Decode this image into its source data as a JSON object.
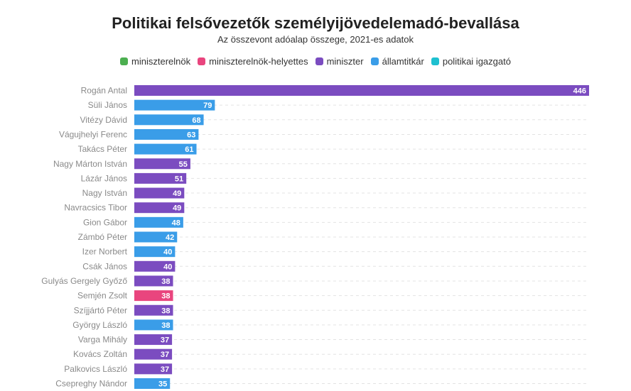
{
  "title": "Politikai felsővezetők személyijövedelemadó-bevallása",
  "subtitle": "Az összevont adóalap összege, 2021-es adatok",
  "colors": {
    "miniszterelnök": "#4caf50",
    "miniszterelnök-helyettes": "#e9457e",
    "miniszter": "#7b4cc0",
    "államtitkár": "#3a9de8",
    "politikai igazgató": "#1ec0d0"
  },
  "legend": [
    {
      "label": "miniszterelnök",
      "color": "#4caf50"
    },
    {
      "label": "miniszterelnök-helyettes",
      "color": "#e9457e"
    },
    {
      "label": "miniszter",
      "color": "#7b4cc0"
    },
    {
      "label": "államtitkár",
      "color": "#3a9de8"
    },
    {
      "label": "politikai igazgató",
      "color": "#1ec0d0"
    }
  ],
  "chart_data": {
    "type": "bar",
    "orientation": "horizontal",
    "title": "Politikai felsővezetők személyijövedelemadó-bevallása",
    "subtitle": "Az összevont adóalap összege, 2021-es adatok",
    "xlim": [
      0,
      446
    ],
    "grid": true,
    "legend_placement": "top-center",
    "bars": [
      {
        "name": "Rogán Antal",
        "value": 446,
        "category": "miniszter"
      },
      {
        "name": "Süli János",
        "value": 79,
        "category": "államtitkár"
      },
      {
        "name": "Vitézy Dávid",
        "value": 68,
        "category": "államtitkár"
      },
      {
        "name": "Vágujhelyi Ferenc",
        "value": 63,
        "category": "államtitkár"
      },
      {
        "name": "Takács Péter",
        "value": 61,
        "category": "államtitkár"
      },
      {
        "name": "Nagy Márton István",
        "value": 55,
        "category": "miniszter"
      },
      {
        "name": "Lázár János",
        "value": 51,
        "category": "miniszter"
      },
      {
        "name": "Nagy István",
        "value": 49,
        "category": "miniszter"
      },
      {
        "name": "Navracsics Tibor",
        "value": 49,
        "category": "miniszter"
      },
      {
        "name": "Gion Gábor",
        "value": 48,
        "category": "államtitkár"
      },
      {
        "name": "Zámbó Péter",
        "value": 42,
        "category": "államtitkár"
      },
      {
        "name": "Izer Norbert",
        "value": 40,
        "category": "államtitkár"
      },
      {
        "name": "Csák János",
        "value": 40,
        "category": "miniszter"
      },
      {
        "name": "Gulyás Gergely Győző",
        "value": 38,
        "category": "miniszter"
      },
      {
        "name": "Semjén Zsolt",
        "value": 38,
        "category": "miniszterelnök-helyettes"
      },
      {
        "name": "Szíjjártó Péter",
        "value": 38,
        "category": "miniszter"
      },
      {
        "name": "György László",
        "value": 38,
        "category": "államtitkár"
      },
      {
        "name": "Varga Mihály",
        "value": 37,
        "category": "miniszter"
      },
      {
        "name": "Kovács Zoltán",
        "value": 37,
        "category": "miniszter"
      },
      {
        "name": "Palkovics László",
        "value": 37,
        "category": "miniszter"
      },
      {
        "name": "Csepreghy Nándor",
        "value": 35,
        "category": "államtitkár"
      }
    ]
  }
}
